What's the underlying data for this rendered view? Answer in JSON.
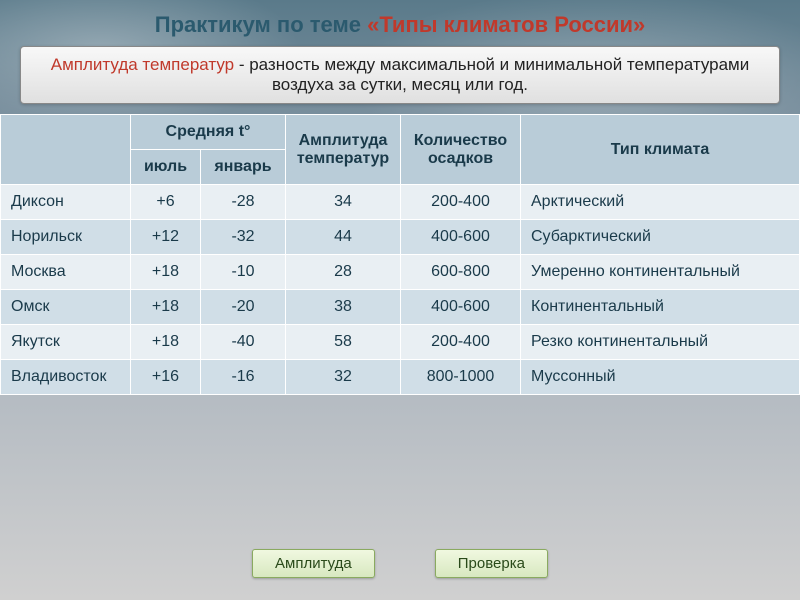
{
  "title": {
    "part1": "Практикум  по теме ",
    "part2": "«Типы климатов России»"
  },
  "definition": {
    "term": "Амплитуда температур",
    "rest": " -  разность между максимальной и минимальной температурами воздуха за сутки, месяц или год."
  },
  "headers": {
    "city": "",
    "avg_t": "Средняя t°",
    "july": "июль",
    "january": "январь",
    "amplitude": "Амплитуда температур",
    "precip": "Количество осадков",
    "climate": "Тип климата"
  },
  "rows": [
    {
      "city": "Диксон",
      "jul": "+6",
      "jan": "-28",
      "amp": "34",
      "prec": "200-400",
      "type": "Арктический"
    },
    {
      "city": "Норильск",
      "jul": "+12",
      "jan": "-32",
      "amp": "44",
      "prec": "400-600",
      "type": "Субарктический"
    },
    {
      "city": "Москва",
      "jul": "+18",
      "jan": "-10",
      "amp": "28",
      "prec": "600-800",
      "type": "Умеренно континентальный"
    },
    {
      "city": "Омск",
      "jul": "+18",
      "jan": "-20",
      "amp": "38",
      "prec": "400-600",
      "type": "Континентальный"
    },
    {
      "city": "Якутск",
      "jul": "+18",
      "jan": "-40",
      "amp": "58",
      "prec": "200-400",
      "type": "Резко континентальный"
    },
    {
      "city": "Владивосток",
      "jul": "+16",
      "jan": "-16",
      "amp": "32",
      "prec": "800-1000",
      "type": "Муссонный"
    }
  ],
  "buttons": {
    "amplitude": "Амплитуда",
    "check": "Проверка"
  },
  "styles": {
    "header_bg": "#b9ccd8",
    "row_odd_bg": "#e9eff3",
    "row_even_bg": "#d0dee7",
    "title_color1": "#2b5a6e",
    "title_color2": "#c0392b",
    "btn_bg": "#d8e8c0",
    "btn_border": "#8aaa60"
  }
}
